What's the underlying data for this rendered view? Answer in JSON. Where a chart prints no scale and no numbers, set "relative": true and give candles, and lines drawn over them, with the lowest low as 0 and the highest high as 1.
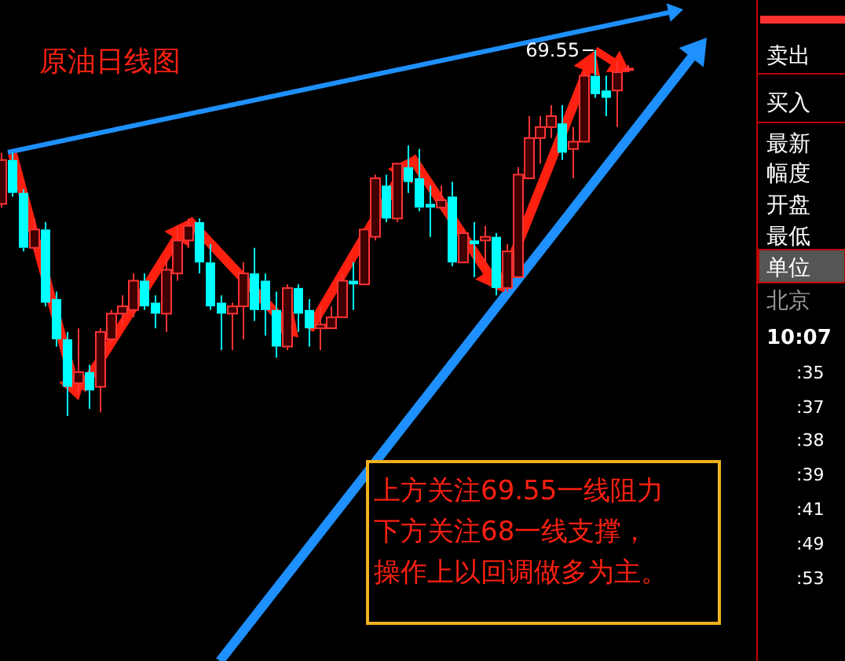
{
  "chart_data": {
    "type": "candlestick",
    "relative": true,
    "title": "原油日线图",
    "categories": [
      null,
      null,
      null,
      null,
      null,
      null,
      null,
      null,
      null,
      null,
      null,
      null,
      null,
      null,
      null,
      null,
      null,
      null,
      null,
      null,
      null,
      null,
      null,
      null,
      null,
      null,
      null,
      null,
      null,
      null,
      null,
      null,
      null,
      null,
      null,
      null,
      null,
      null,
      null,
      null,
      null,
      null,
      null,
      null,
      null,
      null,
      null,
      null,
      null,
      null,
      null,
      null,
      null,
      null,
      null,
      null,
      null,
      null
    ],
    "ohlc": [
      [
        0.58,
        0.72,
        0.57,
        0.7
      ],
      [
        0.7,
        0.72,
        0.6,
        0.61
      ],
      [
        0.61,
        0.62,
        0.45,
        0.46
      ],
      [
        0.46,
        0.54,
        0.45,
        0.51
      ],
      [
        0.51,
        0.53,
        0.3,
        0.31
      ],
      [
        0.32,
        0.34,
        0.19,
        0.21
      ],
      [
        0.21,
        0.23,
        0,
        0.08
      ],
      [
        0.09,
        0.24,
        0.06,
        0.12
      ],
      [
        0.12,
        0.14,
        0.02,
        0.07
      ],
      [
        0.08,
        0.24,
        0.01,
        0.23
      ],
      [
        0.21,
        0.29,
        0.2,
        0.28
      ],
      [
        0.28,
        0.33,
        0.25,
        0.3
      ],
      [
        0.29,
        0.39,
        0.27,
        0.37
      ],
      [
        0.37,
        0.39,
        0.29,
        0.3
      ],
      [
        0.31,
        0.33,
        0.24,
        0.28
      ],
      [
        0.28,
        0.43,
        0.23,
        0.4
      ],
      [
        0.39,
        0.52,
        0.37,
        0.48
      ],
      [
        0.48,
        0.54,
        0.46,
        0.52
      ],
      [
        0.53,
        0.54,
        0.39,
        0.42
      ],
      [
        0.42,
        0.47,
        0.29,
        0.3
      ],
      [
        0.31,
        0.33,
        0.18,
        0.28
      ],
      [
        0.28,
        0.31,
        0.18,
        0.3
      ],
      [
        0.3,
        0.42,
        0.21,
        0.39
      ],
      [
        0.39,
        0.46,
        0.26,
        0.29
      ],
      [
        0.37,
        0.39,
        0.22,
        0.29
      ],
      [
        0.29,
        0.34,
        0.16,
        0.19
      ],
      [
        0.19,
        0.36,
        0.18,
        0.35
      ],
      [
        0.35,
        0.36,
        0.23,
        0.28
      ],
      [
        0.29,
        0.32,
        0.19,
        0.24
      ],
      [
        0.24,
        0.3,
        0.18,
        0.25
      ],
      [
        0.24,
        0.3,
        0.24,
        0.27
      ],
      [
        0.27,
        0.39,
        0.27,
        0.37
      ],
      [
        0.37,
        0.42,
        0.29,
        0.36
      ],
      [
        0.36,
        0.51,
        0.36,
        0.51
      ],
      [
        0.49,
        0.66,
        0.48,
        0.65
      ],
      [
        0.63,
        0.66,
        0.53,
        0.54
      ],
      [
        0.54,
        0.69,
        0.53,
        0.69
      ],
      [
        0.68,
        0.74,
        0.61,
        0.64
      ],
      [
        0.65,
        0.73,
        0.56,
        0.57
      ],
      [
        0.58,
        0.63,
        0.49,
        0.57
      ],
      [
        0.57,
        0.63,
        0.57,
        0.59
      ],
      [
        0.6,
        0.64,
        0.41,
        0.42
      ],
      [
        0.42,
        0.51,
        0.42,
        0.5
      ],
      [
        0.48,
        0.53,
        0.38,
        0.47
      ],
      [
        0.48,
        0.52,
        0.42,
        0.49
      ],
      [
        0.49,
        0.5,
        0.33,
        0.35
      ],
      [
        0.35,
        0.47,
        0.34,
        0.45
      ],
      [
        0.38,
        0.68,
        0.38,
        0.66
      ],
      [
        0.65,
        0.82,
        0.65,
        0.76
      ],
      [
        0.76,
        0.82,
        0.69,
        0.79
      ],
      [
        0.79,
        0.85,
        0.76,
        0.82
      ],
      [
        0.8,
        0.85,
        0.7,
        0.72
      ],
      [
        0.73,
        0.79,
        0.65,
        0.75
      ],
      [
        0.75,
        0.94,
        0.75,
        0.93
      ],
      [
        0.93,
        1,
        0.87,
        0.88
      ],
      [
        0.89,
        0.93,
        0.82,
        0.87
      ],
      [
        0.89,
        0.97,
        0.79,
        0.94
      ],
      [
        0.95,
        0.96,
        0.94,
        0.95
      ]
    ],
    "annotations": [
      "69.55",
      "上方关注69.55一线阻力",
      "下方关注68一线支撑，",
      "操作上以回调做多为主。",
      "卖出",
      "买入",
      "最新",
      "幅度",
      "开盘",
      "最低",
      "单位",
      "北京",
      "10:07",
      ":35",
      ":37",
      ":38",
      ":39",
      ":41",
      ":49",
      ":53"
    ]
  }
}
